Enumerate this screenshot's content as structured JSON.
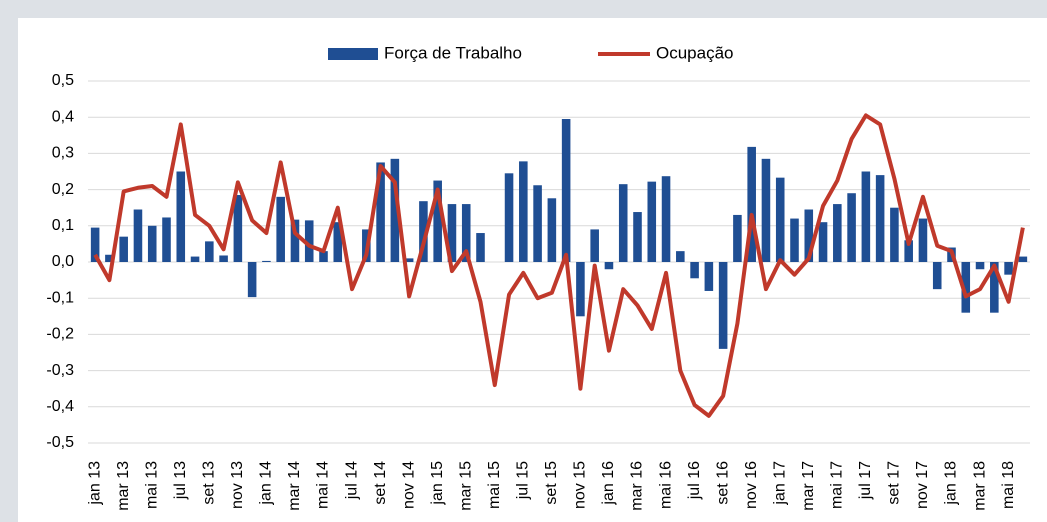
{
  "chart_data": {
    "type": "bar-line",
    "categories": [
      "jan 13",
      null,
      "mar 13",
      null,
      "mai 13",
      null,
      "jul 13",
      null,
      "set 13",
      null,
      "nov 13",
      null,
      "jan 14",
      null,
      "mar 14",
      null,
      "mai 14",
      null,
      "jul 14",
      null,
      "set 14",
      null,
      "nov 14",
      null,
      "jan 15",
      null,
      "mar 15",
      null,
      "mai 15",
      null,
      "jul 15",
      null,
      "set 15",
      null,
      "nov 15",
      null,
      "jan 16",
      null,
      "mar 16",
      null,
      "mai 16",
      null,
      "jul 16",
      null,
      "set 16",
      null,
      "nov 16",
      null,
      "jan 17",
      null,
      "mar 17",
      null,
      "mai 17",
      null,
      "jul 17",
      null,
      "set 17",
      null,
      "nov 17",
      null,
      "jan 18",
      null,
      "mar 18",
      null,
      "mai 18",
      null
    ],
    "series": [
      {
        "name": "Força de Trabalho",
        "type": "bar",
        "color": "#1f4e93",
        "values": [
          0.095,
          0.02,
          0.07,
          0.145,
          0.1,
          0.123,
          0.25,
          0.015,
          0.057,
          0.018,
          0.185,
          -0.097,
          0.003,
          0.18,
          0.117,
          0.115,
          0.03,
          0.11,
          0.0,
          0.09,
          0.275,
          0.285,
          0.01,
          0.168,
          0.225,
          0.16,
          0.16,
          0.08,
          0.0,
          0.245,
          0.278,
          0.212,
          0.176,
          0.395,
          -0.15,
          0.09,
          -0.02,
          0.215,
          0.138,
          0.222,
          0.237,
          0.03,
          -0.045,
          -0.08,
          -0.24,
          0.13,
          0.318,
          0.285,
          0.233,
          0.12,
          0.145,
          0.11,
          0.16,
          0.19,
          0.25,
          0.24,
          0.15,
          0.06,
          0.12,
          -0.075,
          0.04,
          -0.14,
          -0.02,
          -0.14,
          -0.035,
          0.015
        ]
      },
      {
        "name": "Ocupação",
        "type": "line",
        "color": "#c0392b",
        "values": [
          0.02,
          -0.05,
          0.195,
          0.205,
          0.21,
          0.18,
          0.38,
          0.13,
          0.1,
          0.035,
          0.22,
          0.115,
          0.08,
          0.275,
          0.08,
          0.045,
          0.03,
          0.15,
          -0.075,
          0.02,
          0.265,
          0.22,
          -0.095,
          0.05,
          0.2,
          -0.025,
          0.03,
          -0.11,
          -0.34,
          -0.09,
          -0.03,
          -0.1,
          -0.085,
          0.02,
          -0.35,
          -0.01,
          -0.245,
          -0.075,
          -0.12,
          -0.185,
          -0.03,
          -0.3,
          -0.395,
          -0.425,
          -0.37,
          -0.17,
          0.13,
          -0.075,
          0.005,
          -0.035,
          0.01,
          0.155,
          0.225,
          0.34,
          0.405,
          0.38,
          0.23,
          0.05,
          0.18,
          0.045,
          0.03,
          -0.095,
          -0.075,
          -0.01,
          -0.11,
          0.095
        ]
      }
    ],
    "ylim": [
      -0.5,
      0.5
    ],
    "yticks": [
      {
        "value": -0.5,
        "label": "-0,5"
      },
      {
        "value": -0.4,
        "label": "-0,4"
      },
      {
        "value": -0.3,
        "label": "-0,3"
      },
      {
        "value": -0.2,
        "label": "-0,2"
      },
      {
        "value": -0.1,
        "label": "-0,1"
      },
      {
        "value": 0,
        "label": "0,0"
      },
      {
        "value": 0.1,
        "label": "0,1"
      },
      {
        "value": 0.2,
        "label": "0,2"
      },
      {
        "value": 0.3,
        "label": "0,3"
      },
      {
        "value": 0.4,
        "label": "0,4"
      },
      {
        "value": 0.5,
        "label": "0,5"
      }
    ],
    "grid": true,
    "legend": "top"
  }
}
